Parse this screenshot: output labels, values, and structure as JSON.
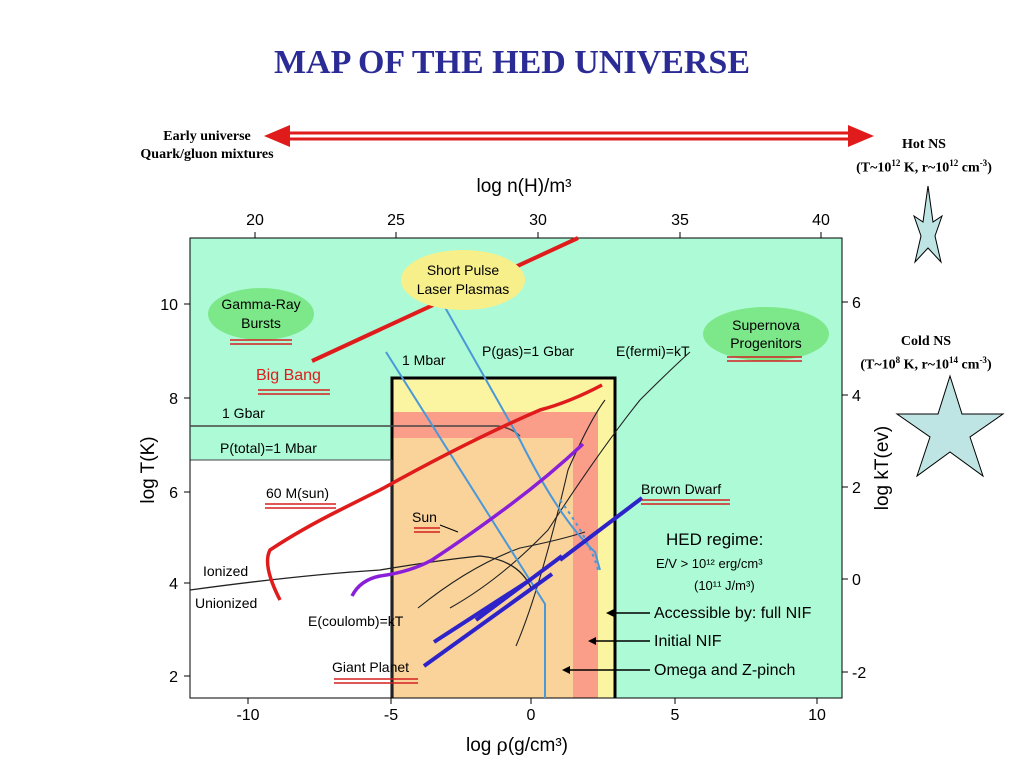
{
  "title": "MAP OF THE HED UNIVERSE",
  "arrow": {
    "left_line1": "Early universe",
    "left_line2": "Quark/gluon mixtures"
  },
  "hot_ns": {
    "line1": "Hot NS",
    "pre": "(T~10",
    "e1": "12",
    "mid": " K, r~10",
    "e2": "12",
    "post": " cm",
    "e3": "-3",
    "close": ")"
  },
  "cold_ns": {
    "line1": "Cold NS",
    "pre": "(T~10",
    "e1": "8",
    "mid": " K, r~10",
    "e2": "14",
    "post": " cm",
    "e3": "-3",
    "close": ")"
  },
  "axes": {
    "top_label": "log n(H)/m³",
    "bottom_label_pre": "log ",
    "bottom_label_rho": "ρ",
    "bottom_label_post": "(g/cm³)",
    "left_label": "log T(K)",
    "right_label": "log kT(ev)",
    "x_ticks": [
      "-10",
      "-5",
      "0",
      "5",
      "10"
    ],
    "top_ticks": [
      "20",
      "25",
      "30",
      "35",
      "40"
    ],
    "left_ticks": [
      "2",
      "4",
      "6",
      "8",
      "10"
    ],
    "right_ticks": [
      "-2",
      "0",
      "2",
      "4",
      "6"
    ]
  },
  "labels": {
    "gamma_ray_1": "Gamma-Ray",
    "gamma_ray_2": "Bursts",
    "short_pulse_1": "Short Pulse",
    "short_pulse_2": "Laser Plasmas",
    "supernova_1": "Supernova",
    "supernova_2": "Progenitors",
    "big_bang": "Big Bang",
    "one_mbar": "1 Mbar",
    "p_gas": "P(gas)=1 Gbar",
    "e_fermi": "E(fermi)=kT",
    "one_gbar": "1 Gbar",
    "p_total": "P(total)=1 Mbar",
    "sixty_msun": "60 M(sun)",
    "sun": "Sun",
    "brown_dwarf": "Brown Dwarf",
    "ionized": "Ionized",
    "unionized": "Unionized",
    "e_coulomb": "E(coulomb)=kT",
    "giant_planet": "Giant Planet",
    "hed_regime": "HED regime:",
    "hed_ev": "E/V > 10¹² erg/cm³",
    "hed_j": "(10¹¹ J/m³)",
    "full_nif": "Accessible by: full NIF",
    "initial_nif": "Initial NIF",
    "omega_z": "Omega and Z-pinch"
  },
  "colors": {
    "background_region": "#adfad6",
    "hed_outer": "#fbf5a2",
    "hed_mid": "#fad39b",
    "hed_inner": "#fa9e8a",
    "red_track": "#e01b1b",
    "purple_track": "#8a1fd8",
    "blue_track": "#2d23c8",
    "pressure_line": "#4a98d8",
    "title": "#2b2b96"
  }
}
